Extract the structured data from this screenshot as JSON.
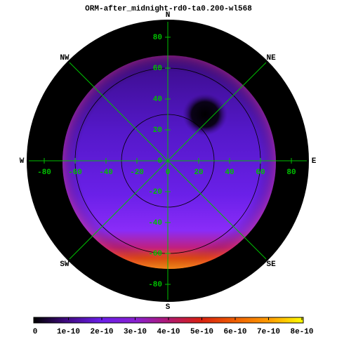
{
  "chart_data": {
    "type": "polar-map",
    "title": "ORM-after_midnight-rd0-ta0.200-wl568",
    "directions": [
      "N",
      "NE",
      "E",
      "SE",
      "S",
      "SW",
      "W",
      "NW"
    ],
    "xlim": [
      -90,
      90
    ],
    "ylim": [
      -90,
      90
    ],
    "xticks": [
      -80,
      -60,
      -40,
      -20,
      0,
      20,
      40,
      60,
      80
    ],
    "yticks": [
      -80,
      -60,
      -40,
      -20,
      0,
      20,
      40,
      60,
      80
    ],
    "grid_color": "#00c000",
    "colorbar": {
      "lim": [
        0,
        8e-10
      ],
      "ticks": [
        0,
        1e-10,
        2e-10,
        3e-10,
        4e-10,
        5e-10,
        6e-10,
        7e-10,
        8e-10
      ]
    }
  }
}
